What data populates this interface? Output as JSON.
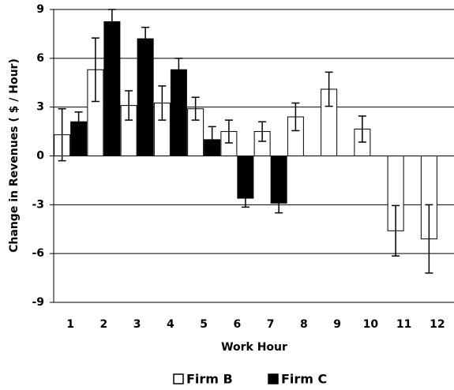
{
  "chart_data": {
    "type": "bar",
    "x_label": "Work Hour",
    "y_label": "Change in Revenues ( $ / Hour)",
    "categories": [
      "1",
      "2",
      "3",
      "4",
      "5",
      "6",
      "7",
      "8",
      "9",
      "10",
      "11",
      "12"
    ],
    "series": [
      {
        "name": "Firm B",
        "color": "#ffffff",
        "values": [
          1.3,
          5.3,
          3.1,
          3.25,
          2.9,
          1.5,
          1.5,
          2.4,
          4.1,
          1.65,
          -4.6,
          -5.1
        ],
        "errors": [
          1.6,
          1.95,
          0.9,
          1.05,
          0.7,
          0.7,
          0.6,
          0.85,
          1.05,
          0.8,
          1.55,
          2.1
        ]
      },
      {
        "name": "Firm C",
        "color": "#000000",
        "values": [
          2.1,
          8.25,
          7.2,
          5.3,
          1.0,
          -2.6,
          -2.9,
          null,
          null,
          null,
          null,
          null
        ],
        "errors": [
          0.6,
          0.75,
          0.7,
          0.7,
          0.8,
          0.55,
          0.6,
          null,
          null,
          null,
          null,
          null
        ]
      }
    ],
    "ylim": [
      -9,
      9
    ],
    "yticks": [
      -9,
      -6,
      -3,
      0,
      3,
      6,
      9
    ],
    "grid": true,
    "legend": "bottom"
  }
}
